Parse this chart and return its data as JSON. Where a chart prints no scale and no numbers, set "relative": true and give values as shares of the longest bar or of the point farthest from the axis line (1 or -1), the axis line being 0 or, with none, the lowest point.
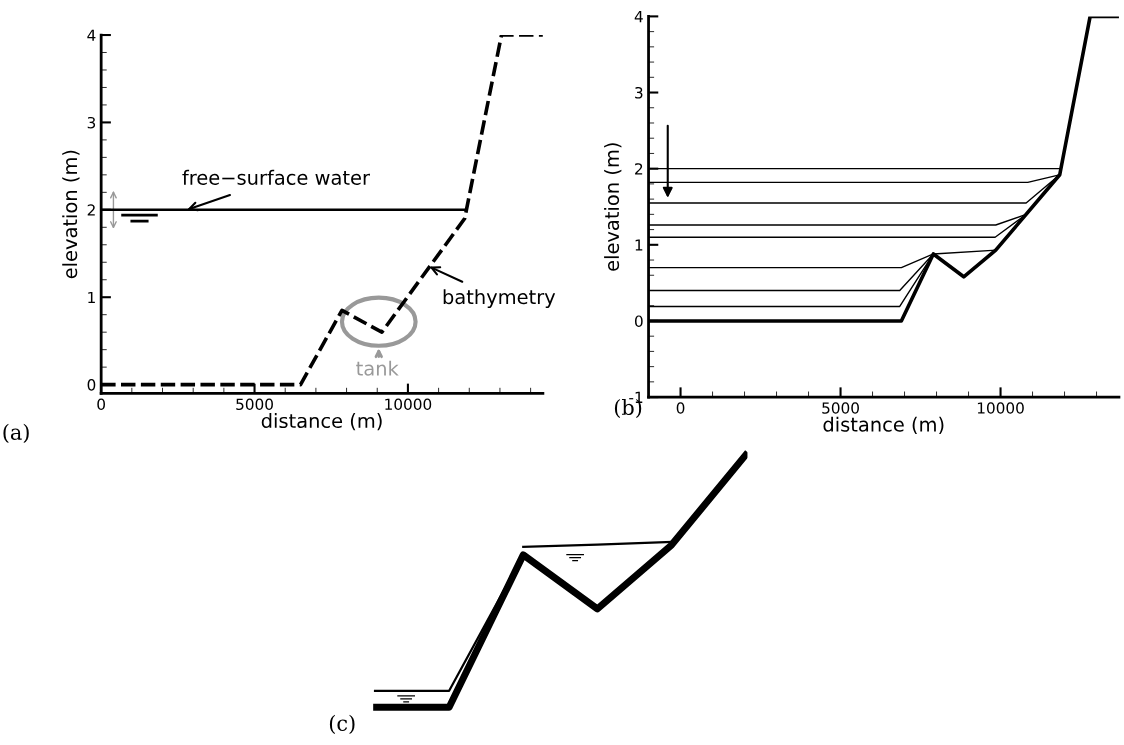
{
  "chart_data": [
    {
      "type": "line",
      "title": "(a)",
      "xlabel": "distance (m)",
      "ylabel": "elevation (m)",
      "xlim": [
        0,
        14400
      ],
      "ylim": [
        -0.1,
        4
      ],
      "xticks": [
        0,
        {
          "value": 1000,
          "label": null
        },
        {
          "value": 2000,
          "label": null
        },
        {
          "value": 3000,
          "label": null
        },
        {
          "value": 4000,
          "label": null
        },
        5000,
        {
          "value": 6000,
          "label": null
        },
        {
          "value": 7000,
          "label": null
        },
        {
          "value": 8000,
          "label": null
        },
        {
          "value": 9000,
          "label": null
        },
        10000,
        {
          "value": 11000,
          "label": null
        },
        {
          "value": 12000,
          "label": null
        },
        {
          "value": 13000,
          "label": null
        },
        {
          "value": 14000,
          "label": null
        }
      ],
      "yticks": [
        0,
        {
          "value": 0.2,
          "label": null
        },
        {
          "value": 0.4,
          "label": null
        },
        {
          "value": 0.6,
          "label": null
        },
        {
          "value": 0.8,
          "label": null
        },
        1,
        {
          "value": 1.2,
          "label": null
        },
        {
          "value": 1.4,
          "label": null
        },
        {
          "value": 1.6,
          "label": null
        },
        {
          "value": 1.8,
          "label": null
        },
        2,
        {
          "value": 2.2,
          "label": null
        },
        {
          "value": 2.4,
          "label": null
        },
        {
          "value": 2.6,
          "label": null
        },
        {
          "value": 2.8,
          "label": null
        },
        3,
        {
          "value": 3.2,
          "label": null
        },
        {
          "value": 3.4,
          "label": null
        },
        {
          "value": 3.6,
          "label": null
        },
        {
          "value": 3.8,
          "label": null
        },
        4
      ],
      "series": [
        {
          "color": "#000000",
          "line_style": "dashed",
          "x": [
            0,
            6500,
            7850,
            9150,
            11850,
            13050,
            14400
          ],
          "values": [
            0,
            0,
            0.85,
            0.6,
            1.9,
            4,
            4
          ]
        },
        {
          "color": "#000000",
          "x": [
            0,
            11900
          ],
          "values": [
            2,
            2
          ]
        }
      ],
      "annotations": [
        {
          "text": "free−surface water",
          "x": 2800,
          "y": 2.0
        },
        {
          "text": "bathymetry",
          "x": 10700,
          "y": 1.35
        },
        "tank"
      ]
    },
    {
      "type": "line",
      "title": "(b)",
      "xlabel": "distance (m)",
      "ylabel": "elevation (m)",
      "xlim": [
        -1000,
        13700
      ],
      "ylim": [
        -1,
        4
      ],
      "xticks": [
        0,
        {
          "value": 1000,
          "label": null
        },
        {
          "value": 2000,
          "label": null
        },
        {
          "value": 3000,
          "label": null
        },
        {
          "value": 4000,
          "label": null
        },
        5000,
        {
          "value": 6000,
          "label": null
        },
        {
          "value": 7000,
          "label": null
        },
        {
          "value": 8000,
          "label": null
        },
        {
          "value": 9000,
          "label": null
        },
        10000,
        {
          "value": 11000,
          "label": null
        },
        {
          "value": 12000,
          "label": null
        },
        {
          "value": 13000,
          "label": null
        }
      ],
      "yticks": [
        -1,
        {
          "value": -0.8,
          "label": null
        },
        {
          "value": -0.6,
          "label": null
        },
        {
          "value": -0.4,
          "label": null
        },
        {
          "value": -0.2,
          "label": null
        },
        0,
        {
          "value": 0.2,
          "label": null
        },
        {
          "value": 0.4,
          "label": null
        },
        {
          "value": 0.6,
          "label": null
        },
        {
          "value": 0.8,
          "label": null
        },
        1,
        {
          "value": 1.2,
          "label": null
        },
        {
          "value": 1.4,
          "label": null
        },
        {
          "value": 1.6,
          "label": null
        },
        {
          "value": 1.8,
          "label": null
        },
        2,
        {
          "value": 2.2,
          "label": null
        },
        {
          "value": 2.4,
          "label": null
        },
        {
          "value": 2.6,
          "label": null
        },
        {
          "value": 2.8,
          "label": null
        },
        3,
        {
          "value": 3.2,
          "label": null
        },
        {
          "value": 3.4,
          "label": null
        },
        {
          "value": 3.6,
          "label": null
        },
        {
          "value": 3.8,
          "label": null
        },
        4
      ],
      "series": [
        {
          "color": "#000000",
          "x": [
            -1000,
            6900,
            7900,
            8850,
            9850,
            11850,
            12800,
            13700
          ],
          "values": [
            0,
            0,
            0.88,
            0.58,
            0.93,
            1.92,
            4,
            4
          ]
        },
        {
          "color": "#000000",
          "x": [
            -1000,
            11850
          ],
          "values": [
            2.0,
            2.0
          ]
        },
        {
          "color": "#000000",
          "x": [
            -1000,
            10850,
            11850
          ],
          "values": [
            1.82,
            1.82,
            1.92
          ]
        },
        {
          "color": "#000000",
          "x": [
            -1000,
            10800,
            11850
          ],
          "values": [
            1.55,
            1.55,
            1.92
          ]
        },
        {
          "color": "#000000",
          "x": [
            -1000,
            9850,
            10800
          ],
          "values": [
            1.26,
            1.26,
            1.4
          ]
        },
        {
          "color": "#000000",
          "x": [
            -1000,
            9830,
            10800
          ],
          "values": [
            1.1,
            1.1,
            1.4
          ]
        },
        {
          "color": "#000000",
          "x": [
            -1000,
            6900,
            7900,
            9850
          ],
          "values": [
            0.7,
            0.7,
            0.88,
            0.93
          ]
        },
        {
          "color": "#000000",
          "x": [
            -1000,
            6850,
            7900
          ],
          "values": [
            0.4,
            0.4,
            0.88
          ]
        },
        {
          "color": "#000000",
          "x": [
            -1000,
            6850,
            7900
          ],
          "values": [
            0.19,
            0.19,
            0.88
          ]
        }
      ]
    },
    {
      "type": "line",
      "title": "(c)",
      "relative": true,
      "categories": [
        null,
        null,
        null,
        null,
        null,
        null
      ],
      "series": [
        {
          "color": "#000000",
          "values": [
            0,
            0,
            0.604,
            0.39,
            0.643,
            1
          ]
        },
        {
          "color": "#000000",
          "values": [
            0.065,
            0.065,
            0.604,
            null,
            null,
            null
          ]
        },
        {
          "color": "#000000",
          "values": [
            null,
            null,
            0.636,
            0.645,
            0.655,
            null
          ]
        }
      ]
    }
  ]
}
